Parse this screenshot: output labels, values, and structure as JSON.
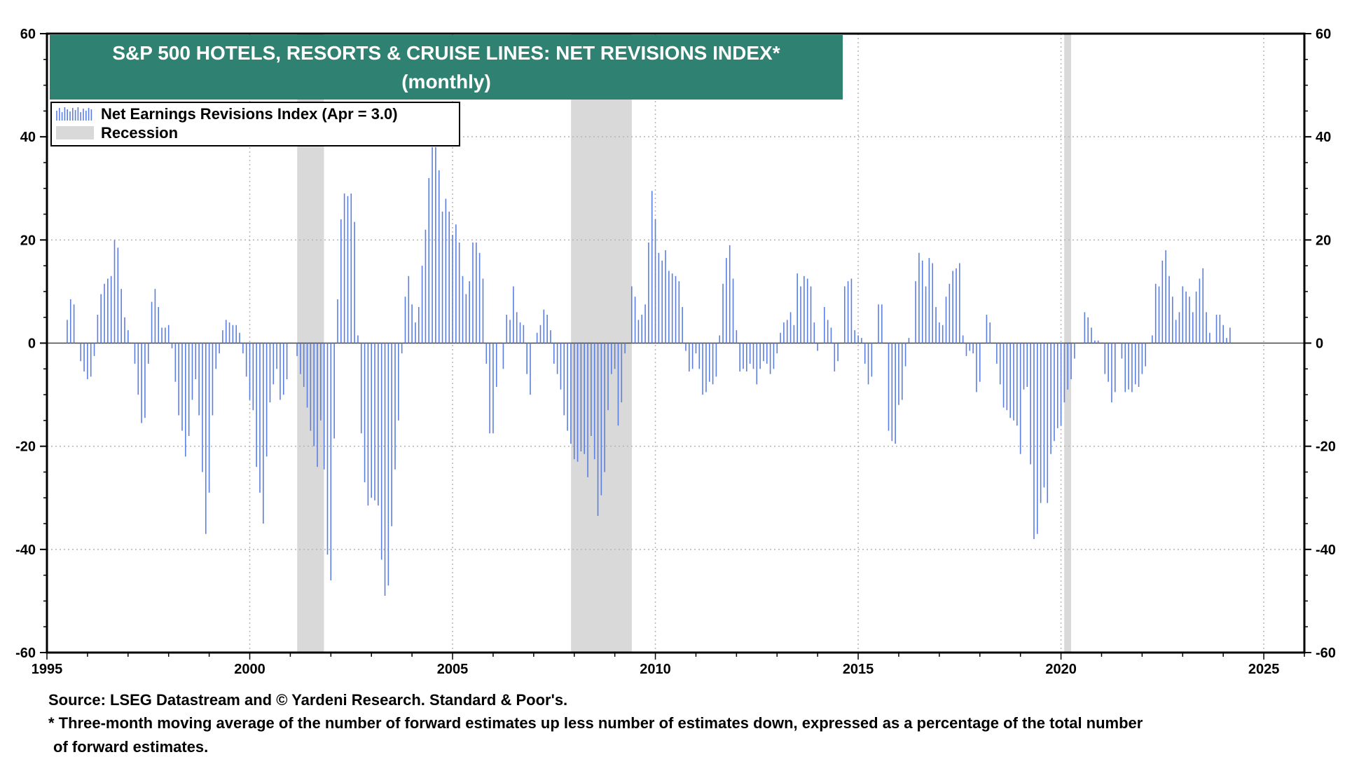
{
  "chart_data": {
    "type": "bar",
    "title": "S&P 500 HOTELS, RESORTS & CRUISE LINES: NET REVISIONS INDEX*",
    "subtitle": "(monthly)",
    "xlim": [
      1995,
      2026
    ],
    "ylim": [
      -60,
      60
    ],
    "y_ticks": [
      -60,
      -40,
      -20,
      0,
      20,
      40,
      60
    ],
    "x_ticks": [
      1995,
      2000,
      2005,
      2010,
      2015,
      2020,
      2025
    ],
    "grid": true,
    "legend_position": "top-left",
    "legend": [
      {
        "label": "Net Earnings Revisions Index (Apr  = 3.0)",
        "kind": "bars"
      },
      {
        "label": "Recession",
        "kind": "shade"
      }
    ],
    "colors": {
      "bars": "#5b7fe0",
      "recession": "#d9d9d9",
      "title_bg": "#2f8271",
      "grid": "#b5b5b5"
    },
    "recessions": [
      {
        "start": 2001.17,
        "end": 2001.83
      },
      {
        "start": 2007.92,
        "end": 2009.42
      },
      {
        "start": 2020.08,
        "end": 2020.25
      }
    ],
    "series": [
      {
        "start_year": 1995.5,
        "step": 0.0833333,
        "values": [
          4.5,
          8.5,
          7.5,
          0,
          -3.5,
          -5.5,
          -7,
          -6.5,
          -2.5,
          5.5,
          9.5,
          11.5,
          12.5,
          13,
          20,
          18.5,
          10.5,
          5,
          2.5,
          0,
          -4,
          -10,
          -15.5,
          -14.5,
          -4,
          8,
          10.5,
          7,
          3,
          3,
          3.5,
          -1,
          -7.5,
          -14,
          -17,
          -22,
          -18,
          -11,
          -7,
          -14,
          -25,
          -37,
          -29,
          -14,
          -5,
          -2,
          2.5,
          4.5,
          4,
          3.5,
          3.5,
          2,
          -2,
          -6.5,
          -11,
          -13,
          -24,
          -29,
          -35,
          -22,
          -11.5,
          -8,
          -5,
          -11,
          -10,
          -7,
          0,
          0,
          -2.5,
          -6,
          -8.5,
          -12.5,
          -17,
          -20,
          -24,
          -15,
          -24.5,
          -41,
          -46,
          -18.5,
          8.5,
          24,
          29,
          28.5,
          29,
          23.5,
          1.5,
          -17.5,
          -27,
          -31.5,
          -30,
          -30.5,
          -31.5,
          -42,
          -49,
          -47,
          -35.5,
          -24.5,
          -15,
          -2,
          9,
          13,
          7.5,
          4,
          7,
          15,
          22,
          32,
          38,
          38,
          33.5,
          25.5,
          28,
          25.5,
          21,
          23,
          19.5,
          13,
          9.5,
          12,
          19.5,
          19.5,
          17.5,
          12.5,
          -4,
          -17.5,
          -17.5,
          -8.5,
          0,
          -5,
          5.5,
          4.5,
          11,
          6,
          4,
          3.5,
          -6,
          -10,
          0,
          2,
          3.5,
          6.5,
          5.5,
          2.5,
          -4,
          -6,
          -9,
          -14,
          -17,
          -19.5,
          -22.5,
          -23,
          -21,
          -21.5,
          -26,
          -18,
          -22.5,
          -33.5,
          -29.5,
          -25,
          -13,
          -6,
          -5,
          -16,
          -11.5,
          -2,
          0,
          11,
          9,
          4.5,
          5.5,
          7.5,
          19.5,
          29.5,
          24,
          17.5,
          16,
          18,
          14,
          13.5,
          13,
          12,
          7,
          -1.5,
          -5.5,
          -5,
          -2,
          -5,
          -10,
          -9.5,
          -7.5,
          -8,
          -6.5,
          1.5,
          11.5,
          16.5,
          19,
          12.5,
          2.5,
          -5.5,
          -5,
          -5.5,
          -4,
          -5,
          -8,
          -5,
          -3.5,
          -4,
          -6,
          -5,
          -2,
          2,
          4,
          4.5,
          6,
          3.5,
          13.5,
          11,
          13,
          12.5,
          11,
          4,
          -1.5,
          0,
          7,
          4.5,
          3,
          -5.5,
          -3.5,
          0,
          11,
          12,
          12.5,
          2.5,
          1.5,
          1,
          -4,
          -8,
          -6.5,
          0,
          7.5,
          7.5,
          0,
          -17,
          -19,
          -19.5,
          -12,
          -11,
          -4.5,
          1,
          0,
          12,
          17.5,
          16,
          11,
          16.5,
          15.5,
          7,
          4,
          3.5,
          9,
          11.5,
          14,
          14.5,
          15.5,
          1.5,
          -2.5,
          -1.5,
          -2,
          -9.5,
          -7.5,
          0,
          5.5,
          4,
          0,
          -4,
          -8,
          -12.5,
          -13,
          -14.5,
          -15,
          -16,
          -21.5,
          -9,
          -8.5,
          -23.5,
          -38,
          -37,
          -31,
          -28,
          -31,
          -21.5,
          -19,
          -16.5,
          -16,
          -11.5,
          -9,
          -7,
          -3,
          0,
          0,
          6,
          5,
          3,
          0.5,
          0.5,
          0,
          -6,
          -7.5,
          -11.5,
          -9.5,
          0,
          -3,
          -9.5,
          -9,
          -9.5,
          -8,
          -8.5,
          -6,
          -4.5,
          0,
          1.5,
          11.5,
          11,
          16,
          18,
          13,
          9,
          4.5,
          6,
          11,
          10,
          9,
          6,
          10,
          12.5,
          14.5,
          6,
          2,
          0,
          5.5,
          5.5,
          3.5,
          1,
          3
        ]
      }
    ]
  },
  "footer": {
    "source": "Source: LSEG Datastream and © Yardeni Research. Standard & Poor's.",
    "note_line1": "* Three-month moving average of the number of forward estimates up less number of estimates down, expressed as a percentage of the total number",
    "note_line2": "of forward estimates."
  }
}
